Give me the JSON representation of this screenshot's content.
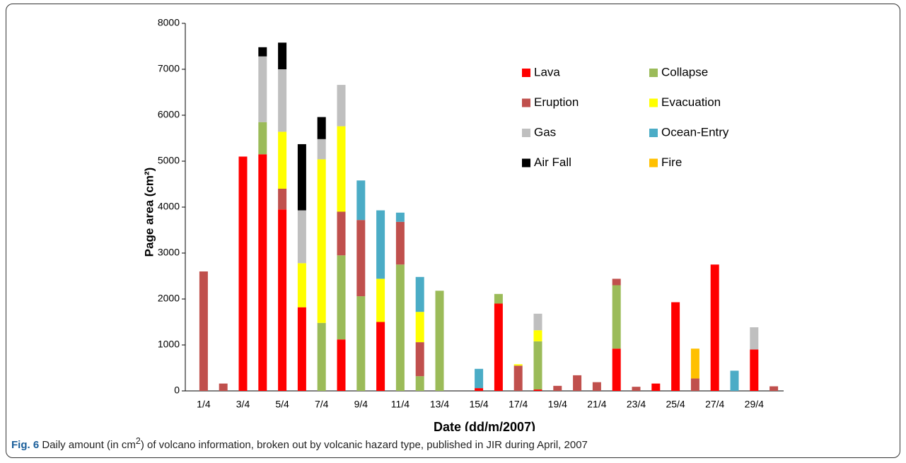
{
  "chart_data": {
    "type": "bar",
    "stacked": true,
    "y_label": "Page area (cm²)",
    "x_label": "Date (dd/m/2007)",
    "caption": {
      "label": "Fig. 6",
      "text_before": "Daily amount (in cm",
      "sup": "2",
      "text_after": ") of volcano information, broken out by volcanic hazard type, published in JIR during April, 2007"
    },
    "categories": [
      "1/4",
      null,
      "3/4",
      null,
      "5/4",
      null,
      "7/4",
      null,
      "9/4",
      null,
      "11/4",
      null,
      "13/4",
      null,
      "15/4",
      null,
      "17/4",
      null,
      "19/4",
      null,
      "21/4",
      null,
      "23/4",
      null,
      "25/4",
      null,
      "27/4",
      null,
      "29/4",
      null
    ],
    "ylim": [
      0,
      8000
    ],
    "yticks": [
      0,
      1000,
      2000,
      3000,
      4000,
      5000,
      6000,
      7000,
      8000
    ],
    "grid": false,
    "legend": "top-right",
    "series": [
      {
        "name": "Lava",
        "color": "#ff0000",
        "values": [
          null,
          null,
          5100,
          5150,
          3950,
          1820,
          null,
          1120,
          null,
          1500,
          null,
          null,
          null,
          null,
          60,
          1900,
          null,
          30,
          null,
          null,
          null,
          920,
          null,
          160,
          1930,
          null,
          2750,
          null,
          900,
          null
        ]
      },
      {
        "name": "Collapse",
        "color": "#9bbb59",
        "values": [
          null,
          null,
          null,
          700,
          null,
          null,
          1480,
          1830,
          2060,
          null,
          2750,
          320,
          2180,
          null,
          null,
          210,
          null,
          1050,
          null,
          null,
          null,
          1380,
          null,
          null,
          null,
          null,
          null,
          null,
          null,
          null
        ]
      },
      {
        "name": "Eruption",
        "color": "#c0504d",
        "values": [
          2600,
          160,
          null,
          null,
          450,
          null,
          null,
          950,
          1660,
          null,
          930,
          740,
          null,
          null,
          null,
          null,
          550,
          null,
          110,
          340,
          190,
          140,
          90,
          null,
          null,
          270,
          null,
          null,
          null,
          100
        ]
      },
      {
        "name": "Evacuation",
        "color": "#ffff00",
        "values": [
          null,
          null,
          null,
          null,
          1240,
          960,
          3560,
          1860,
          null,
          940,
          null,
          660,
          null,
          null,
          null,
          null,
          30,
          240,
          null,
          null,
          null,
          null,
          null,
          null,
          null,
          null,
          null,
          null,
          null,
          null
        ]
      },
      {
        "name": "Gas",
        "color": "#bfbfbf",
        "values": [
          null,
          null,
          null,
          1430,
          1360,
          1150,
          440,
          900,
          null,
          null,
          null,
          null,
          null,
          null,
          null,
          null,
          null,
          360,
          null,
          null,
          null,
          null,
          null,
          null,
          null,
          null,
          null,
          null,
          485,
          null
        ]
      },
      {
        "name": "Ocean-Entry",
        "color": "#4bacc6",
        "values": [
          null,
          null,
          null,
          null,
          null,
          null,
          null,
          null,
          860,
          1490,
          200,
          760,
          null,
          null,
          420,
          null,
          null,
          null,
          null,
          null,
          null,
          null,
          null,
          null,
          null,
          null,
          null,
          440,
          null,
          null
        ]
      },
      {
        "name": "Air Fall",
        "color": "#000000",
        "values": [
          null,
          null,
          null,
          200,
          580,
          1440,
          480,
          null,
          null,
          null,
          null,
          null,
          null,
          null,
          null,
          null,
          null,
          null,
          null,
          null,
          null,
          null,
          null,
          null,
          null,
          null,
          null,
          null,
          null,
          null
        ]
      },
      {
        "name": "Fire",
        "color": "#ffc000",
        "values": [
          null,
          null,
          null,
          null,
          null,
          null,
          null,
          null,
          null,
          null,
          null,
          null,
          null,
          null,
          null,
          null,
          null,
          null,
          null,
          null,
          null,
          null,
          null,
          null,
          null,
          650,
          null,
          null,
          null,
          null
        ]
      }
    ]
  }
}
